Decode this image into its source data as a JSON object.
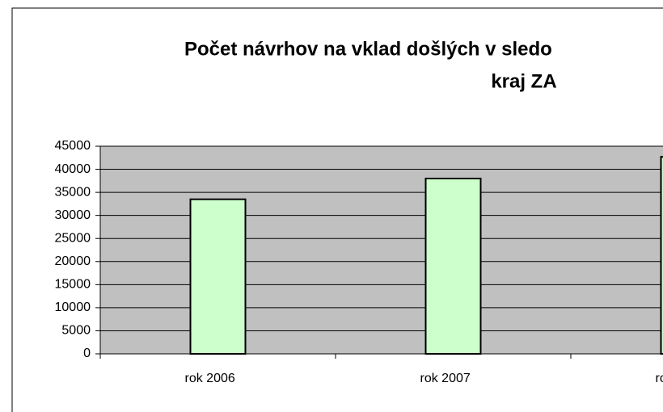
{
  "chart_data": {
    "type": "bar",
    "title_lines": [
      "Počet návrhov na vklad došlých v sledo",
      "kraj ZA"
    ],
    "categories": [
      "rok 2006",
      "rok 2007",
      "ro"
    ],
    "values": [
      33500,
      38000,
      42700
    ],
    "color": "#ccffcc",
    "plot_background": "#c0c0c0",
    "ylim": [
      0,
      45000
    ],
    "yticks": [
      0,
      5000,
      10000,
      15000,
      20000,
      25000,
      30000,
      35000,
      40000,
      45000
    ],
    "grid": true
  }
}
